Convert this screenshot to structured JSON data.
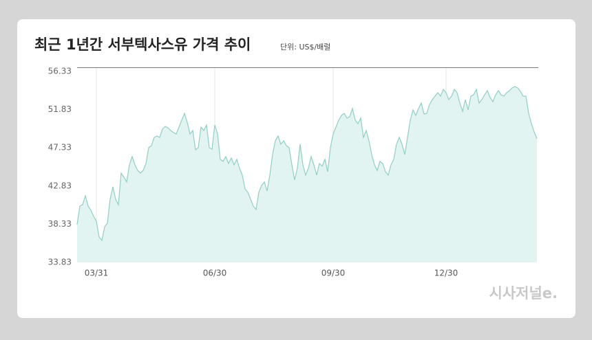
{
  "chart_data": {
    "type": "area",
    "title": "최근 1년간 서부텍사스유 가격 추이",
    "subtitle": "단위: US$/배럴",
    "logo": "시사저널e.",
    "color": "#8fcfc5",
    "fill": "#e2f4f2",
    "categories": [
      null,
      null,
      null,
      null,
      null,
      null,
      null,
      "03/31",
      null,
      null,
      null,
      null,
      null,
      null,
      null,
      null,
      null,
      null,
      null,
      null,
      null,
      null,
      null,
      null,
      null,
      null,
      null,
      null,
      null,
      null,
      null,
      null,
      null,
      null,
      null,
      null,
      null,
      null,
      null,
      null,
      null,
      null,
      null,
      null,
      null,
      null,
      null,
      null,
      null,
      null,
      "06/30",
      null,
      null,
      null,
      null,
      null,
      null,
      null,
      null,
      null,
      null,
      null,
      null,
      null,
      null,
      null,
      null,
      null,
      null,
      null,
      null,
      null,
      null,
      null,
      null,
      null,
      null,
      null,
      null,
      null,
      null,
      null,
      null,
      null,
      null,
      null,
      null,
      null,
      null,
      null,
      null,
      null,
      null,
      "09/30",
      null,
      null,
      null,
      null,
      null,
      null,
      null,
      null,
      null,
      null,
      null,
      null,
      null,
      null,
      null,
      null,
      null,
      null,
      null,
      null,
      null,
      null,
      null,
      null,
      null,
      null,
      null,
      null,
      null,
      null,
      null,
      null,
      null,
      null,
      null,
      null,
      null,
      null,
      null,
      null,
      "12/30",
      null,
      null,
      null,
      null,
      null,
      null,
      null,
      null,
      null,
      null,
      null,
      null,
      null,
      null,
      null,
      null,
      null,
      null,
      null,
      null,
      null,
      null,
      null,
      null,
      null,
      null,
      null,
      null,
      null,
      null,
      null,
      null,
      null
    ],
    "values": [
      38.28,
      40.47,
      40.63,
      41.68,
      40.47,
      39.98,
      39.25,
      38.69,
      36.82,
      36.42,
      38.04,
      38.44,
      41.28,
      42.73,
      41.28,
      40.63,
      44.35,
      43.87,
      43.3,
      45.32,
      46.29,
      45.32,
      44.67,
      44.35,
      44.67,
      45.48,
      47.35,
      47.59,
      48.56,
      48.72,
      48.56,
      49.53,
      49.85,
      49.69,
      49.37,
      49.13,
      48.96,
      49.77,
      50.58,
      51.39,
      50.34,
      48.96,
      49.37,
      47.1,
      47.35,
      49.77,
      49.37,
      50.02,
      47.35,
      47.18,
      50.02,
      48.96,
      45.97,
      45.73,
      46.29,
      45.48,
      46.13,
      45.32,
      45.97,
      44.92,
      44.11,
      42.49,
      42.09,
      41.28,
      40.47,
      40.06,
      42.09,
      42.89,
      43.3,
      42.25,
      44.11,
      46.54,
      48.16,
      48.72,
      47.75,
      48.16,
      47.59,
      47.35,
      45.32,
      43.54,
      44.92,
      47.75,
      45.32,
      44.11,
      44.92,
      46.29,
      45.32,
      44.11,
      45.48,
      45.16,
      45.97,
      44.51,
      47.35,
      48.96,
      49.77,
      50.58,
      51.15,
      51.39,
      50.83,
      50.99,
      51.96,
      50.58,
      50.18,
      50.83,
      48.56,
      49.37,
      48.16,
      46.54,
      45.32,
      44.67,
      45.73,
      45.48,
      44.51,
      44.11,
      45.32,
      45.97,
      47.75,
      48.56,
      47.75,
      46.54,
      48.56,
      50.58,
      51.8,
      51.15,
      51.96,
      52.61,
      51.31,
      51.39,
      52.44,
      53.01,
      53.42,
      53.82,
      53.42,
      54.22,
      53.82,
      53.01,
      53.42,
      54.22,
      53.82,
      52.61,
      51.63,
      53.01,
      51.8,
      53.42,
      53.58,
      54.22,
      52.61,
      53.01,
      53.58,
      54.06,
      53.25,
      52.77,
      53.58,
      54.06,
      53.58,
      53.42,
      53.82,
      54.06,
      54.39,
      54.55,
      54.39,
      53.98,
      53.42,
      53.42,
      51.39,
      50.18,
      49.21,
      48.4
    ],
    "ylim": [
      33.83,
      56.33
    ],
    "yticks": [
      33.83,
      38.33,
      42.83,
      47.33,
      51.83,
      56.33
    ],
    "xgrid": true
  }
}
